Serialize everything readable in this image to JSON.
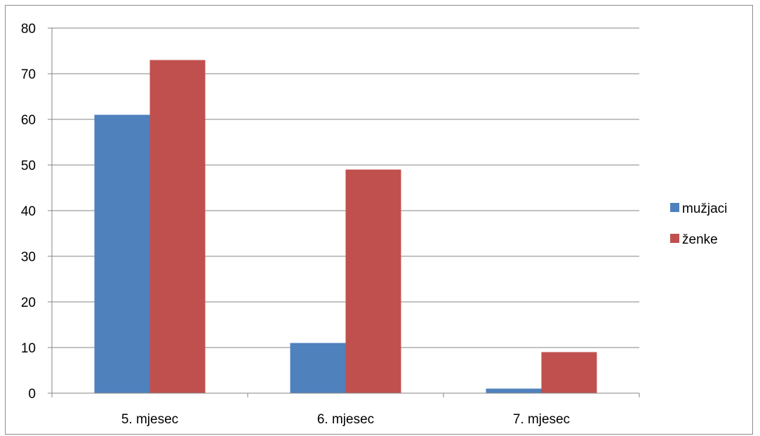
{
  "chart_data": {
    "type": "bar",
    "title": "",
    "xlabel": "",
    "ylabel": "",
    "categories": [
      "5. mjesec",
      "6. mjesec",
      "7. mjesec"
    ],
    "series": [
      {
        "name": "mužjaci",
        "values": [
          61,
          11,
          1
        ],
        "color": "#4f81bd"
      },
      {
        "name": "ženke",
        "values": [
          73,
          49,
          9
        ],
        "color": "#c0504d"
      }
    ],
    "ylim": [
      0,
      80
    ],
    "yticks": [
      0,
      10,
      20,
      30,
      40,
      50,
      60,
      70,
      80
    ],
    "grid": true,
    "legend_position": "right"
  }
}
